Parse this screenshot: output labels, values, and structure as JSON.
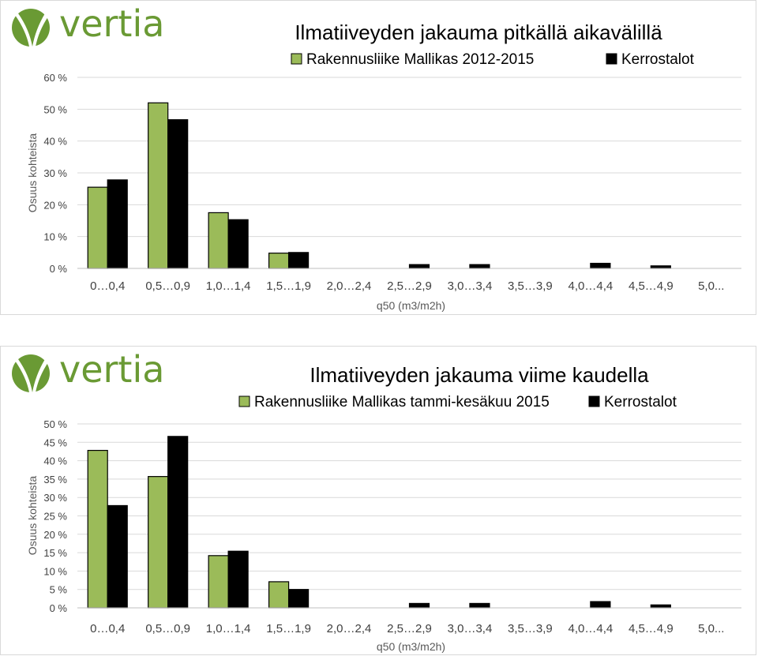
{
  "brand": {
    "logo_text": "vertia",
    "color": "#6a9a34"
  },
  "colors": {
    "series_green": "#9bbb59",
    "series_black": "#000000",
    "grid": "#d9d9d9"
  },
  "chart_data": [
    {
      "type": "bar",
      "title": "Ilmatiiveyden jakauma pitkällä aikavälillä",
      "xlabel": "q50 (m3/m2h)",
      "ylabel": "Osuus kohteista",
      "ylim": [
        0,
        60
      ],
      "yticks": [
        "0 %",
        "10 %",
        "20 %",
        "30 %",
        "40 %",
        "50 %",
        "60 %"
      ],
      "ytick_values": [
        0,
        10,
        20,
        30,
        40,
        50,
        60
      ],
      "grid": true,
      "legend_position": "top",
      "categories": [
        "0…0,4",
        "0,5…0,9",
        "1,0…1,4",
        "1,5…1,9",
        "2,0…2,4",
        "2,5…2,9",
        "3,0…3,4",
        "3,5…3,9",
        "4,0…4,4",
        "4,5…4,9",
        "5,0..."
      ],
      "series": [
        {
          "name": "Rakennusliike Mallikas 2012-2015",
          "color": "#9bbb59",
          "values": [
            25.5,
            52,
            17.5,
            4.8,
            0,
            0,
            0,
            0,
            0,
            0,
            0
          ]
        },
        {
          "name": "Kerrostalot",
          "color": "#000000",
          "values": [
            27.8,
            46.7,
            15.3,
            5,
            0,
            1.2,
            1.2,
            0,
            1.6,
            0.8,
            0
          ]
        }
      ]
    },
    {
      "type": "bar",
      "title": "Ilmatiiveyden jakauma viime kaudella",
      "xlabel": "q50 (m3/m2h)",
      "ylabel": "Osuus kohteista",
      "ylim": [
        0,
        50
      ],
      "yticks": [
        "0 %",
        "5 %",
        "10 %",
        "15 %",
        "20 %",
        "25 %",
        "30 %",
        "35 %",
        "40 %",
        "45 %",
        "50 %"
      ],
      "ytick_values": [
        0,
        5,
        10,
        15,
        20,
        25,
        30,
        35,
        40,
        45,
        50
      ],
      "grid": true,
      "legend_position": "top",
      "categories": [
        "0…0,4",
        "0,5…0,9",
        "1,0…1,4",
        "1,5…1,9",
        "2,0…2,4",
        "2,5…2,9",
        "3,0…3,4",
        "3,5…3,9",
        "4,0…4,4",
        "4,5…4,9",
        "5,0..."
      ],
      "series": [
        {
          "name": "Rakennusliike Mallikas tammi-kesäkuu 2015",
          "color": "#9bbb59",
          "values": [
            42.8,
            35.7,
            14.2,
            7.1,
            0,
            0,
            0,
            0,
            0,
            0,
            0
          ]
        },
        {
          "name": "Kerrostalot",
          "color": "#000000",
          "values": [
            27.8,
            46.6,
            15.4,
            5,
            0,
            1.2,
            1.2,
            0,
            1.7,
            0.8,
            0
          ]
        }
      ]
    }
  ]
}
